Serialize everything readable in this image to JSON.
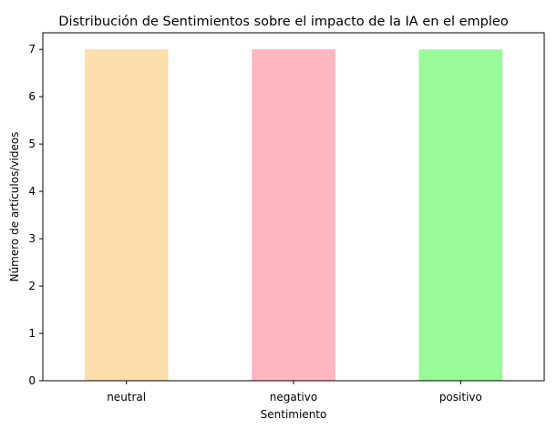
{
  "chart_data": {
    "type": "bar",
    "title": "Distribución de Sentimientos sobre el impacto de la IA en el empleo",
    "xlabel": "Sentimiento",
    "ylabel": "Número de artículos/videos",
    "categories": [
      "neutral",
      "negativo",
      "positivo"
    ],
    "values": [
      7,
      7,
      7
    ],
    "colors": [
      "#FDDEAD",
      "#FFB6C1",
      "#98FB98"
    ],
    "ylim": [
      0,
      7.35
    ],
    "yticks": [
      0,
      1,
      2,
      3,
      4,
      5,
      6,
      7
    ],
    "grid": false,
    "legend": "none"
  }
}
